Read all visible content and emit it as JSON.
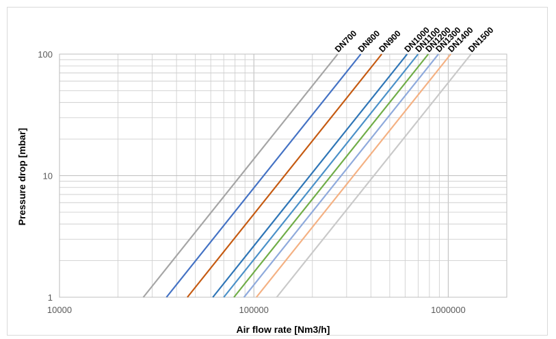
{
  "chart_data": {
    "type": "line",
    "xscale": "log",
    "yscale": "log",
    "xlabel": "Air flow rate [Nm3/h]",
    "ylabel": "Pressure drop [mbar]",
    "xlim": [
      10000,
      2000000
    ],
    "ylim": [
      1,
      100
    ],
    "x_ticks": [
      "10000",
      "100000",
      "1000000"
    ],
    "y_ticks": [
      "1",
      "10",
      "100"
    ],
    "grid": true,
    "minor_grid": true,
    "legend": "none; series names labelled at line ends (rotated)",
    "series": [
      {
        "name": "DN700",
        "color": "#a5a5a5",
        "x": [
          27000,
          270000
        ],
        "y": [
          1,
          100
        ]
      },
      {
        "name": "DN800",
        "color": "#4472c4",
        "x": [
          35500,
          355000
        ],
        "y": [
          1,
          100
        ]
      },
      {
        "name": "DN900",
        "color": "#c55a11",
        "x": [
          45500,
          455000
        ],
        "y": [
          1,
          100
        ]
      },
      {
        "name": "DN1000",
        "color": "#2e75b6",
        "x": [
          61500,
          615000
        ],
        "y": [
          1,
          100
        ]
      },
      {
        "name": "DN1100",
        "color": "#4a90c8",
        "x": [
          70000,
          700000
        ],
        "y": [
          1,
          100
        ]
      },
      {
        "name": "DN1200",
        "color": "#70ad47",
        "x": [
          79000,
          790000
        ],
        "y": [
          1,
          100
        ]
      },
      {
        "name": "DN1300",
        "color": "#8faadc",
        "x": [
          89000,
          890000
        ],
        "y": [
          1,
          100
        ]
      },
      {
        "name": "DN1400",
        "color": "#f4b183",
        "x": [
          103000,
          1030000
        ],
        "y": [
          1,
          100
        ]
      },
      {
        "name": "DN1500",
        "color": "#c9c9c9",
        "x": [
          131000,
          1310000
        ],
        "y": [
          1,
          100
        ]
      }
    ]
  }
}
